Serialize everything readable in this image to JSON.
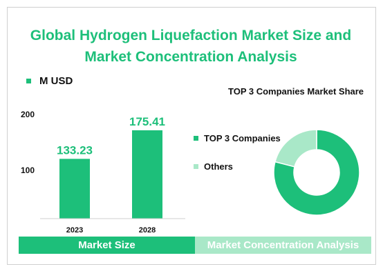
{
  "title_line1": "Global Hydrogen Liquefaction  Market Size and",
  "title_line2": "Market Concentration Analysis",
  "bar_legend": "M USD",
  "pie_title": "TOP 3 Companies Market Share",
  "band_left": "Market Size",
  "band_right": "Market Concentration Analysis",
  "colors": {
    "primary": "#1dbf7a",
    "light": "#a9e8c8"
  },
  "chart_data": [
    {
      "type": "bar",
      "categories": [
        "2023",
        "2028"
      ],
      "series": [
        {
          "name": "M USD",
          "values": [
            133.23,
            175.41
          ]
        }
      ],
      "value_labels": [
        "133.23",
        "175.41"
      ],
      "yticks": [
        "100",
        "200"
      ],
      "ylim": [
        45,
        215
      ]
    },
    {
      "type": "pie",
      "title": "TOP 3 Companies Market Share",
      "labels": [
        "TOP 3 Companies",
        "Others"
      ],
      "values": [
        79,
        21
      ],
      "colors": [
        "#1dbf7a",
        "#a9e8c8"
      ],
      "donut": true
    }
  ]
}
